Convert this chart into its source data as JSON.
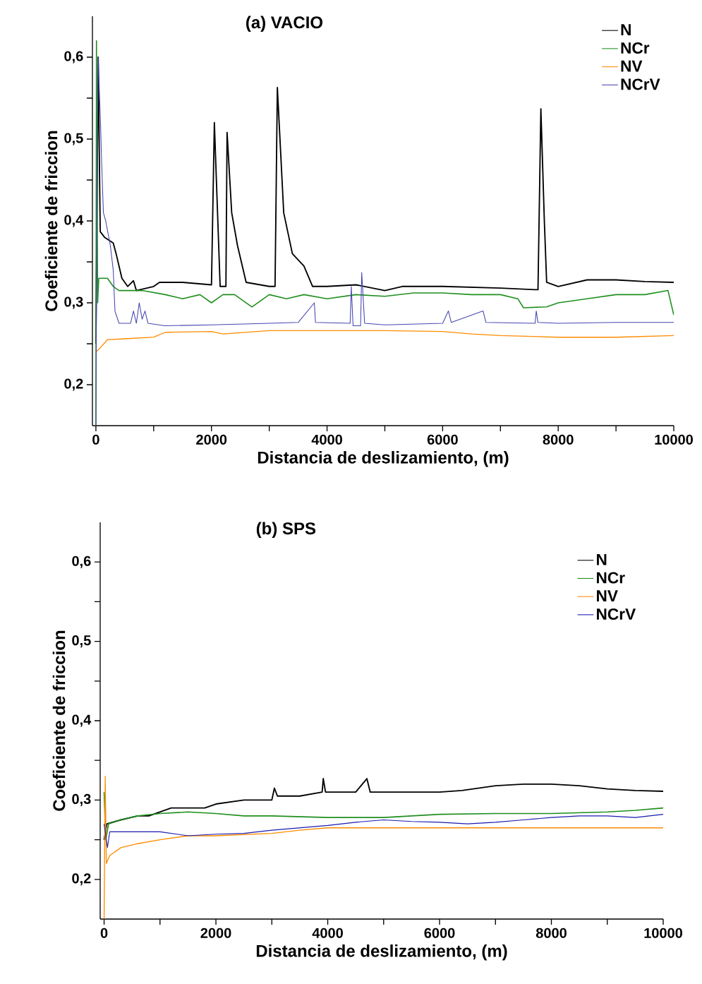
{
  "chart_data": [
    {
      "type": "line",
      "title": "(a)  VACIO",
      "xlabel": "Distancia de deslizamiento, (m)",
      "ylabel": "Coeficiente de friccion",
      "legend": "top right",
      "xlim": [
        -60,
        10000
      ],
      "ylim": [
        0.15,
        0.65
      ],
      "xticks": [
        0,
        {
          "value": 1000,
          "label": null
        },
        2000,
        {
          "value": 3000,
          "label": null
        },
        4000,
        {
          "value": 5000,
          "label": null
        },
        6000,
        {
          "value": 7000,
          "label": null
        },
        8000,
        {
          "value": 9000,
          "label": null
        },
        10000
      ],
      "yticks": [
        {
          "value": 0.2,
          "label": "0,2"
        },
        {
          "value": 0.25,
          "label": null
        },
        {
          "value": 0.3,
          "label": "0,3"
        },
        {
          "value": 0.35,
          "label": null
        },
        {
          "value": 0.4,
          "label": "0,4"
        },
        {
          "value": 0.45,
          "label": null
        },
        {
          "value": 0.5,
          "label": "0,5"
        },
        {
          "value": 0.55,
          "label": null
        },
        {
          "value": 0.6,
          "label": "0,6"
        }
      ],
      "series": [
        {
          "name": "N",
          "color": "#000000",
          "x": [
            0,
            40,
            75,
            150,
            300,
            350,
            450,
            550,
            650,
            700,
            1000,
            1100,
            1500,
            2000,
            2050,
            2150,
            2250,
            2270,
            2350,
            2450,
            2600,
            3000,
            3100,
            3140,
            3250,
            3400,
            3600,
            3750,
            4000,
            4500,
            5000,
            5300,
            6000,
            7000,
            7600,
            7650,
            7700,
            7760,
            7800,
            8000,
            8500,
            9000,
            9500,
            10000
          ],
          "values": [
            0.25,
            0.6,
            0.387,
            0.38,
            0.373,
            0.36,
            0.33,
            0.32,
            0.327,
            0.315,
            0.32,
            0.325,
            0.325,
            0.322,
            0.52,
            0.32,
            0.32,
            0.508,
            0.41,
            0.37,
            0.325,
            0.32,
            0.32,
            0.563,
            0.41,
            0.36,
            0.345,
            0.32,
            0.32,
            0.322,
            0.315,
            0.32,
            0.32,
            0.318,
            0.316,
            0.316,
            0.537,
            0.4,
            0.325,
            0.32,
            0.328,
            0.328,
            0.326,
            0.325
          ]
        },
        {
          "name": "NCr",
          "color": "#1f8f1f",
          "x": [
            0,
            10,
            30,
            50,
            200,
            300,
            400,
            800,
            1200,
            1500,
            1800,
            2000,
            2100,
            2200,
            2400,
            2700,
            3000,
            3300,
            3600,
            4000,
            4500,
            5000,
            5500,
            6000,
            6500,
            7000,
            7300,
            7400,
            7800,
            8000,
            8500,
            9000,
            9500,
            9900,
            10000
          ],
          "values": [
            0.15,
            0.62,
            0.3,
            0.33,
            0.33,
            0.32,
            0.315,
            0.315,
            0.31,
            0.305,
            0.31,
            0.3,
            0.305,
            0.31,
            0.31,
            0.295,
            0.31,
            0.305,
            0.31,
            0.305,
            0.31,
            0.308,
            0.312,
            0.312,
            0.31,
            0.31,
            0.305,
            0.294,
            0.295,
            0.3,
            0.305,
            0.31,
            0.31,
            0.315,
            0.285
          ]
        },
        {
          "name": "NV",
          "color": "#ff8c00",
          "x": [
            0,
            50,
            200,
            500,
            1000,
            1200,
            2000,
            2200,
            3000,
            4000,
            5000,
            6000,
            6500,
            7000,
            8000,
            9000,
            10000
          ],
          "values": [
            0.24,
            0.243,
            0.255,
            0.256,
            0.258,
            0.264,
            0.265,
            0.262,
            0.266,
            0.266,
            0.266,
            0.265,
            0.262,
            0.26,
            0.258,
            0.258,
            0.26
          ]
        },
        {
          "name": "NCrV",
          "color": "#4646b0",
          "x": [
            0,
            20,
            40,
            80,
            100,
            130,
            170,
            250,
            300,
            330,
            400,
            600,
            650,
            700,
            750,
            800,
            850,
            900,
            1200,
            2000,
            3000,
            3500,
            3780,
            3800,
            4400,
            4420,
            4450,
            4580,
            4600,
            4650,
            5000,
            6000,
            6100,
            6150,
            6700,
            6750,
            7600,
            7620,
            7650,
            8000,
            9000,
            10000
          ],
          "values": [
            0.15,
            0.45,
            0.6,
            0.52,
            0.47,
            0.41,
            0.4,
            0.37,
            0.34,
            0.29,
            0.275,
            0.275,
            0.29,
            0.275,
            0.3,
            0.28,
            0.29,
            0.275,
            0.272,
            0.273,
            0.275,
            0.276,
            0.3,
            0.276,
            0.275,
            0.32,
            0.272,
            0.272,
            0.337,
            0.275,
            0.273,
            0.275,
            0.29,
            0.276,
            0.29,
            0.276,
            0.275,
            0.29,
            0.276,
            0.275,
            0.276,
            0.276
          ]
        }
      ]
    },
    {
      "type": "line",
      "title": "(b) SPS",
      "xlabel": "Distancia de deslizamiento, (m)",
      "ylabel": "Coeficiente de friccion",
      "legend": "top right",
      "xlim": [
        -70,
        10000
      ],
      "ylim": [
        0.15,
        0.65
      ],
      "xticks": [
        0,
        {
          "value": 1000,
          "label": null
        },
        2000,
        {
          "value": 3000,
          "label": null
        },
        4000,
        {
          "value": 5000,
          "label": null
        },
        6000,
        {
          "value": 7000,
          "label": null
        },
        8000,
        {
          "value": 9000,
          "label": null
        },
        10000
      ],
      "yticks": [
        {
          "value": 0.2,
          "label": "0,2"
        },
        {
          "value": 0.25,
          "label": null
        },
        {
          "value": 0.3,
          "label": "0,3"
        },
        {
          "value": 0.35,
          "label": null
        },
        {
          "value": 0.4,
          "label": "0,4"
        },
        {
          "value": 0.45,
          "label": null
        },
        {
          "value": 0.5,
          "label": "0,5"
        },
        {
          "value": 0.55,
          "label": null
        },
        {
          "value": 0.6,
          "label": "0,6"
        }
      ],
      "series": [
        {
          "name": "N",
          "color": "#000000",
          "x": [
            0,
            50,
            300,
            600,
            800,
            1000,
            1200,
            1800,
            2000,
            2500,
            3000,
            3046,
            3100,
            3500,
            3900,
            3920,
            3960,
            4500,
            4700,
            4760,
            5000,
            5500,
            6000,
            6400,
            7000,
            7500,
            8000,
            8500,
            9000,
            9500,
            10000
          ],
          "values": [
            0.25,
            0.27,
            0.275,
            0.28,
            0.28,
            0.285,
            0.29,
            0.29,
            0.295,
            0.3,
            0.3,
            0.315,
            0.305,
            0.305,
            0.31,
            0.327,
            0.31,
            0.31,
            0.327,
            0.31,
            0.31,
            0.31,
            0.31,
            0.312,
            0.318,
            0.32,
            0.32,
            0.318,
            0.314,
            0.312,
            0.311
          ]
        },
        {
          "name": "NCr",
          "color": "#1f8f1f",
          "x": [
            0,
            30,
            80,
            300,
            600,
            1000,
            1500,
            2000,
            2500,
            3000,
            4000,
            5000,
            6000,
            7000,
            8000,
            9000,
            9500,
            10000
          ],
          "values": [
            0.31,
            0.25,
            0.27,
            0.275,
            0.28,
            0.283,
            0.285,
            0.283,
            0.28,
            0.28,
            0.278,
            0.278,
            0.282,
            0.283,
            0.283,
            0.285,
            0.287,
            0.29
          ]
        },
        {
          "name": "NV",
          "color": "#ff8c00",
          "x": [
            0,
            20,
            40,
            100,
            300,
            600,
            1000,
            1500,
            2000,
            3000,
            3500,
            4000,
            5000,
            6000,
            8000,
            10000
          ],
          "values": [
            0.15,
            0.33,
            0.22,
            0.23,
            0.24,
            0.245,
            0.25,
            0.255,
            0.255,
            0.258,
            0.262,
            0.265,
            0.265,
            0.265,
            0.265,
            0.265
          ]
        },
        {
          "name": "NCrV",
          "color": "#1a1ab0",
          "x": [
            0,
            60,
            100,
            500,
            1000,
            1500,
            2000,
            2500,
            3000,
            3500,
            4000,
            4500,
            5000,
            5500,
            6000,
            6500,
            7000,
            7500,
            8000,
            8500,
            9000,
            9500,
            10000
          ],
          "values": [
            0.27,
            0.24,
            0.26,
            0.26,
            0.26,
            0.255,
            0.257,
            0.258,
            0.262,
            0.265,
            0.268,
            0.272,
            0.275,
            0.273,
            0.272,
            0.27,
            0.272,
            0.275,
            0.278,
            0.28,
            0.28,
            0.278,
            0.282
          ]
        }
      ]
    }
  ]
}
